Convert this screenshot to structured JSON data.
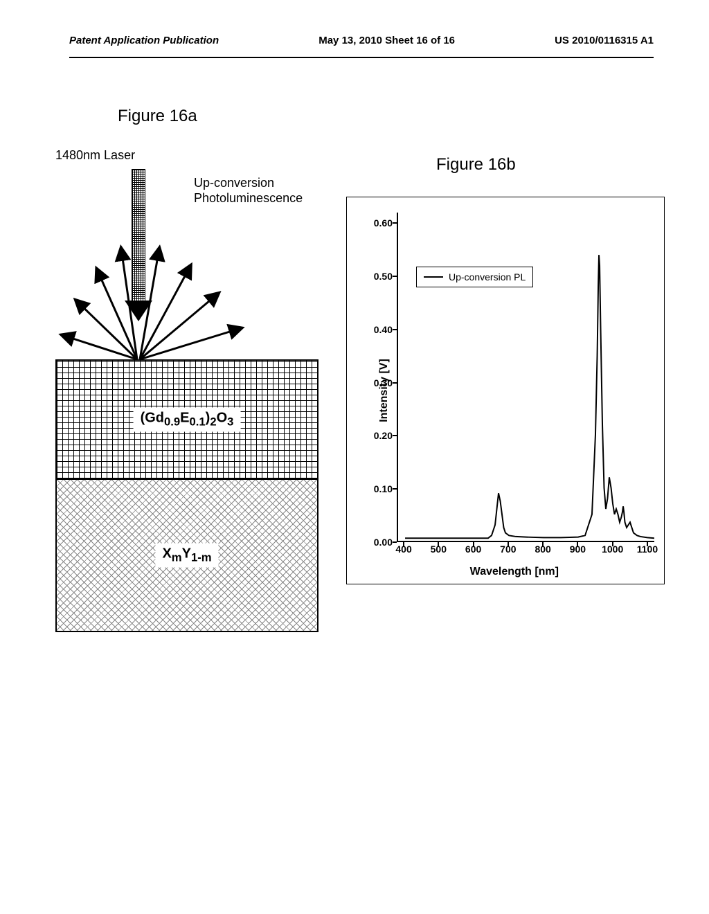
{
  "header": {
    "left": "Patent Application Publication",
    "center": "May 13, 2010  Sheet 16 of 16",
    "right": "US 2010/0116315 A1"
  },
  "fig16a": {
    "label": "Figure 16a",
    "laser_label": "1480nm Laser",
    "pl_label_line1": "Up-conversion",
    "pl_label_line2": "Photoluminescence",
    "layer_top_formula_parts": {
      "p1": "(Gd",
      "s1": "0.9",
      "p2": "E",
      "s2": "0.1",
      "p3": ")",
      "s3": "2",
      "p4": "O",
      "s4": "3"
    },
    "layer_bottom_formula_parts": {
      "p1": "X",
      "s1": "m",
      "p2": "Y",
      "s2": "1-m"
    }
  },
  "fig16b": {
    "label": "Figure 16b",
    "y_axis_label": "Intensity [V]",
    "x_axis_label": "Wavelength [nm]",
    "legend": "Up-conversion PL",
    "x_ticks": [
      400,
      500,
      600,
      700,
      800,
      900,
      1000,
      1100
    ],
    "y_ticks": [
      "0.00",
      "0.10",
      "0.20",
      "0.30",
      "0.40",
      "0.50",
      "0.60"
    ],
    "xlim": [
      380,
      1120
    ],
    "ylim": [
      0.0,
      0.62
    ],
    "data": [
      [
        400,
        0.005
      ],
      [
        450,
        0.005
      ],
      [
        500,
        0.005
      ],
      [
        550,
        0.005
      ],
      [
        600,
        0.005
      ],
      [
        640,
        0.005
      ],
      [
        650,
        0.01
      ],
      [
        660,
        0.03
      ],
      [
        665,
        0.06
      ],
      [
        670,
        0.09
      ],
      [
        675,
        0.075
      ],
      [
        680,
        0.05
      ],
      [
        685,
        0.025
      ],
      [
        690,
        0.015
      ],
      [
        700,
        0.01
      ],
      [
        720,
        0.008
      ],
      [
        750,
        0.007
      ],
      [
        800,
        0.006
      ],
      [
        850,
        0.006
      ],
      [
        900,
        0.007
      ],
      [
        920,
        0.01
      ],
      [
        940,
        0.05
      ],
      [
        950,
        0.2
      ],
      [
        955,
        0.35
      ],
      [
        958,
        0.48
      ],
      [
        960,
        0.54
      ],
      [
        962,
        0.52
      ],
      [
        965,
        0.4
      ],
      [
        970,
        0.22
      ],
      [
        975,
        0.1
      ],
      [
        980,
        0.06
      ],
      [
        985,
        0.08
      ],
      [
        990,
        0.12
      ],
      [
        995,
        0.1
      ],
      [
        1000,
        0.07
      ],
      [
        1005,
        0.05
      ],
      [
        1010,
        0.06
      ],
      [
        1015,
        0.05
      ],
      [
        1020,
        0.035
      ],
      [
        1025,
        0.045
      ],
      [
        1028,
        0.055
      ],
      [
        1030,
        0.065
      ],
      [
        1032,
        0.055
      ],
      [
        1035,
        0.035
      ],
      [
        1040,
        0.025
      ],
      [
        1045,
        0.03
      ],
      [
        1050,
        0.035
      ],
      [
        1055,
        0.025
      ],
      [
        1060,
        0.015
      ],
      [
        1070,
        0.01
      ],
      [
        1080,
        0.008
      ],
      [
        1100,
        0.006
      ],
      [
        1120,
        0.005
      ]
    ],
    "line_color": "#000000",
    "line_width": 2,
    "background": "#ffffff"
  }
}
